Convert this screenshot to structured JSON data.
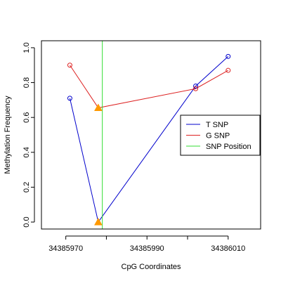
{
  "chart_data": {
    "type": "line",
    "xlabel": "CpG Coordinates",
    "ylabel": "Methylation Frequency",
    "xlim": [
      34385964,
      34386018
    ],
    "ylim": [
      -0.04,
      1.04
    ],
    "x_ticks": [
      34385970,
      34385990,
      34386010
    ],
    "y_ticks": [
      0.0,
      0.2,
      0.4,
      0.6,
      0.8,
      1.0
    ],
    "x_tick_labels": [
      "34385970",
      "34385990",
      "34386010"
    ],
    "y_tick_labels": [
      "0.0",
      "0.2",
      "0.4",
      "0.6",
      "0.8",
      "1.0"
    ],
    "legend_position": "right",
    "series": [
      {
        "name": "T SNP",
        "color": "#0000cc",
        "x": [
          34385971,
          34385978,
          34386002,
          34386010
        ],
        "y": [
          0.71,
          0.0,
          0.78,
          0.95
        ],
        "snp_marker_index": 1
      },
      {
        "name": "G SNP",
        "color": "#dd2222",
        "x": [
          34385971,
          34385978,
          34386002,
          34386010
        ],
        "y": [
          0.9,
          0.655,
          0.765,
          0.87
        ],
        "snp_marker_index": 1
      },
      {
        "name": "SNP Position",
        "color": "#33dd33",
        "x": [
          34385979,
          34385979
        ],
        "type": "vline"
      }
    ],
    "snp_marker_color": "#ff9900"
  }
}
